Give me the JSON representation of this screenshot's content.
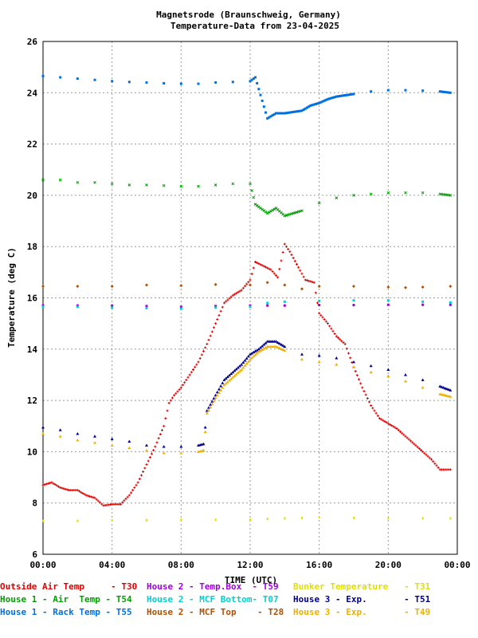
{
  "chart_data": {
    "type": "scatter",
    "title": "Magnetsrode (Braunschweig, Germany)",
    "subtitle": "Temperature-Data from 23-04-2025",
    "xlabel": "TIME (UTC)",
    "ylabel": "Temperature (deg C)",
    "x_ticks": [
      "00:00",
      "04:00",
      "08:00",
      "12:00",
      "16:00",
      "20:00",
      "00:00"
    ],
    "xlim": [
      0,
      24
    ],
    "ylim": [
      6,
      26
    ],
    "y_ticks": [
      "6",
      "8",
      "10",
      "12",
      "14",
      "16",
      "18",
      "20",
      "22",
      "24",
      "26"
    ],
    "grid": true,
    "legend_position": "bottom",
    "series": [
      {
        "name": "Outside Air Temp",
        "sensor": "T30",
        "color": "#e00000",
        "marker": "plus",
        "points": [
          [
            0,
            8.7
          ],
          [
            0.5,
            8.8
          ],
          [
            1,
            8.6
          ],
          [
            1.5,
            8.5
          ],
          [
            2,
            8.5
          ],
          [
            2.5,
            8.3
          ],
          [
            3,
            8.2
          ],
          [
            3.5,
            7.9
          ],
          [
            4,
            7.95
          ],
          [
            4.5,
            7.95
          ],
          [
            5,
            8.3
          ],
          [
            5.5,
            8.8
          ],
          [
            6,
            9.5
          ],
          [
            6.5,
            10.2
          ],
          [
            7,
            11
          ],
          [
            7.3,
            11.9
          ],
          [
            7.6,
            12.2
          ],
          [
            8,
            12.5
          ],
          [
            8.5,
            13
          ],
          [
            9,
            13.5
          ],
          [
            9.5,
            14.2
          ],
          [
            10,
            15
          ],
          [
            10.5,
            15.8
          ],
          [
            11,
            16.1
          ],
          [
            11.5,
            16.3
          ],
          [
            12,
            16.7
          ],
          [
            12.3,
            17.4
          ],
          [
            13.2,
            17.1
          ],
          [
            13.6,
            16.8
          ],
          [
            14,
            18.1
          ],
          [
            14.3,
            17.8
          ],
          [
            15.2,
            16.7
          ],
          [
            15.7,
            16.6
          ],
          [
            16,
            15.4
          ],
          [
            16.5,
            15
          ],
          [
            17,
            14.5
          ],
          [
            17.5,
            14.2
          ],
          [
            18,
            13.3
          ],
          [
            18.5,
            12.5
          ],
          [
            19,
            11.8
          ],
          [
            19.5,
            11.3
          ],
          [
            20,
            11.1
          ],
          [
            20.5,
            10.9
          ],
          [
            21,
            10.6
          ],
          [
            21.5,
            10.3
          ],
          [
            22,
            10
          ],
          [
            22.5,
            9.7
          ],
          [
            23,
            9.3
          ],
          [
            23.6,
            9.3
          ]
        ]
      },
      {
        "name": "House 1 - Air  Temp",
        "sensor": "T54",
        "color": "#00a000",
        "marker": "x",
        "points": [
          [
            0,
            20.6
          ],
          [
            1,
            20.6
          ],
          [
            2,
            20.5
          ],
          [
            3,
            20.5
          ],
          [
            4,
            20.45
          ],
          [
            5,
            20.4
          ],
          [
            6,
            20.4
          ],
          [
            7,
            20.38
          ],
          [
            8,
            20.35
          ],
          [
            9,
            20.35
          ],
          [
            10,
            20.4
          ],
          [
            11,
            20.45
          ],
          [
            12,
            20.45
          ],
          [
            12.3,
            19.65
          ],
          [
            13,
            19.3
          ],
          [
            13.5,
            19.5
          ],
          [
            14,
            19.2
          ],
          [
            14.5,
            19.3
          ],
          [
            15,
            19.4
          ],
          [
            16,
            19.7
          ],
          [
            17,
            19.9
          ],
          [
            18,
            20
          ],
          [
            19,
            20.05
          ],
          [
            20,
            20.1
          ],
          [
            21,
            20.1
          ],
          [
            22,
            20.1
          ],
          [
            23,
            20.05
          ],
          [
            23.6,
            20
          ]
        ]
      },
      {
        "name": "House 1 - Rack Temp",
        "sensor": "T55",
        "color": "#0070e0",
        "marker": "square",
        "points": [
          [
            0,
            24.65
          ],
          [
            1,
            24.6
          ],
          [
            2,
            24.55
          ],
          [
            3,
            24.5
          ],
          [
            4,
            24.45
          ],
          [
            5,
            24.42
          ],
          [
            6,
            24.4
          ],
          [
            7,
            24.37
          ],
          [
            8,
            24.35
          ],
          [
            9,
            24.35
          ],
          [
            10,
            24.4
          ],
          [
            11,
            24.42
          ],
          [
            12,
            24.45
          ],
          [
            12.3,
            24.6
          ],
          [
            13,
            23
          ],
          [
            13.5,
            23.2
          ],
          [
            14,
            23.2
          ],
          [
            14.5,
            23.25
          ],
          [
            15,
            23.3
          ],
          [
            15.5,
            23.5
          ],
          [
            16,
            23.6
          ],
          [
            16.5,
            23.75
          ],
          [
            17,
            23.85
          ],
          [
            17.5,
            23.9
          ],
          [
            18,
            23.95
          ],
          [
            19,
            24.05
          ],
          [
            20,
            24.1
          ],
          [
            21,
            24.1
          ],
          [
            22,
            24.08
          ],
          [
            23,
            24.05
          ],
          [
            23.6,
            24
          ]
        ]
      },
      {
        "name": "House 2 - Temp.Box",
        "sensor": "T59",
        "color": "#a000e0",
        "marker": "square",
        "points": [
          [
            0,
            15.7
          ],
          [
            2,
            15.7
          ],
          [
            4,
            15.7
          ],
          [
            6,
            15.68
          ],
          [
            8,
            15.65
          ],
          [
            10,
            15.68
          ],
          [
            12,
            15.7
          ],
          [
            13,
            15.7
          ],
          [
            14,
            15.7
          ],
          [
            16,
            15.72
          ],
          [
            18,
            15.72
          ],
          [
            20,
            15.73
          ],
          [
            22,
            15.73
          ],
          [
            23.6,
            15.73
          ]
        ]
      },
      {
        "name": "House 2 - MCF Bottom",
        "sensor": "T07",
        "color": "#00d0d0",
        "marker": "square",
        "points": [
          [
            0,
            15.65
          ],
          [
            2,
            15.65
          ],
          [
            4,
            15.62
          ],
          [
            6,
            15.6
          ],
          [
            8,
            15.58
          ],
          [
            10,
            15.62
          ],
          [
            12,
            15.65
          ],
          [
            13,
            15.8
          ],
          [
            14,
            15.85
          ],
          [
            16,
            15.88
          ],
          [
            18,
            15.9
          ],
          [
            20,
            15.9
          ],
          [
            22,
            15.85
          ],
          [
            23.6,
            15.82
          ]
        ]
      },
      {
        "name": "House 2 - MCF Top",
        "sensor": "T28",
        "color": "#b05000",
        "marker": "diamond",
        "points": [
          [
            0,
            16.45
          ],
          [
            2,
            16.45
          ],
          [
            4,
            16.45
          ],
          [
            6,
            16.5
          ],
          [
            8,
            16.48
          ],
          [
            10,
            16.52
          ],
          [
            12,
            16.5
          ],
          [
            13,
            16.6
          ],
          [
            14,
            16.5
          ],
          [
            15,
            16.35
          ],
          [
            16,
            16.45
          ],
          [
            18,
            16.45
          ],
          [
            20,
            16.42
          ],
          [
            21,
            16.4
          ],
          [
            22,
            16.42
          ],
          [
            23.6,
            16.45
          ]
        ]
      },
      {
        "name": "Bunker Temperature",
        "sensor": "T31",
        "color": "#e0e000",
        "marker": "tick",
        "points": [
          [
            0,
            7.3
          ],
          [
            2,
            7.3
          ],
          [
            4,
            7.32
          ],
          [
            6,
            7.33
          ],
          [
            8,
            7.35
          ],
          [
            10,
            7.35
          ],
          [
            12,
            7.35
          ],
          [
            13,
            7.38
          ],
          [
            14,
            7.4
          ],
          [
            15,
            7.42
          ],
          [
            16,
            7.44
          ],
          [
            18,
            7.42
          ],
          [
            20,
            7.4
          ],
          [
            22,
            7.4
          ],
          [
            23.6,
            7.4
          ]
        ]
      },
      {
        "name": "House 3 - Exp.",
        "sensor": "T51",
        "color": "#000090",
        "marker": "triangle",
        "points": [
          [
            0,
            10.95
          ],
          [
            1,
            10.85
          ],
          [
            2,
            10.7
          ],
          [
            3,
            10.6
          ],
          [
            4,
            10.5
          ],
          [
            5,
            10.4
          ],
          [
            6,
            10.25
          ],
          [
            7,
            10.2
          ],
          [
            8,
            10.2
          ],
          [
            9,
            10.25
          ],
          [
            9.3,
            10.3
          ],
          [
            9.5,
            11.6
          ],
          [
            10,
            12.2
          ],
          [
            10.5,
            12.8
          ],
          [
            11,
            13.1
          ],
          [
            11.5,
            13.4
          ],
          [
            12,
            13.8
          ],
          [
            12.5,
            14
          ],
          [
            13,
            14.3
          ],
          [
            13.5,
            14.3
          ],
          [
            14,
            14.1
          ],
          [
            15,
            13.8
          ],
          [
            16,
            13.75
          ],
          [
            17,
            13.65
          ],
          [
            18,
            13.5
          ],
          [
            19,
            13.35
          ],
          [
            20,
            13.2
          ],
          [
            21,
            13
          ],
          [
            22,
            12.8
          ],
          [
            23,
            12.55
          ],
          [
            23.6,
            12.4
          ]
        ]
      },
      {
        "name": "House 3 - Exp.",
        "sensor": "T49",
        "color": "#f0b000",
        "marker": "triangle",
        "points": [
          [
            0,
            10.7
          ],
          [
            1,
            10.6
          ],
          [
            2,
            10.45
          ],
          [
            3,
            10.35
          ],
          [
            4,
            10.25
          ],
          [
            5,
            10.15
          ],
          [
            6,
            10.05
          ],
          [
            7,
            9.95
          ],
          [
            8,
            9.95
          ],
          [
            9,
            10
          ],
          [
            9.3,
            10.05
          ],
          [
            9.5,
            11.5
          ],
          [
            10,
            12.1
          ],
          [
            10.5,
            12.6
          ],
          [
            11,
            12.9
          ],
          [
            11.5,
            13.2
          ],
          [
            12,
            13.6
          ],
          [
            12.5,
            13.9
          ],
          [
            13,
            14.1
          ],
          [
            13.5,
            14.1
          ],
          [
            14,
            13.95
          ],
          [
            15,
            13.6
          ],
          [
            16,
            13.5
          ],
          [
            17,
            13.4
          ],
          [
            18,
            13.3
          ],
          [
            19,
            13.1
          ],
          [
            20,
            12.95
          ],
          [
            21,
            12.75
          ],
          [
            22,
            12.5
          ],
          [
            23,
            12.25
          ],
          [
            23.6,
            12.15
          ]
        ]
      }
    ]
  },
  "legend": {
    "rows": [
      [
        {
          "label": "Outside Air Temp     - T30",
          "color": "#e00000"
        },
        {
          "label": "House 2 - Temp.Box  - T59",
          "color": "#a000e0"
        },
        {
          "label": "Bunker Temperature   - T31",
          "color": "#e0e000"
        }
      ],
      [
        {
          "label": "House 1 - Air  Temp - T54",
          "color": "#00a000"
        },
        {
          "label": "House 2 - MCF Bottom- T07",
          "color": "#00d0d0"
        },
        {
          "label": "House 3 - Exp.       - T51",
          "color": "#000090"
        }
      ],
      [
        {
          "label": "House 1 - Rack Temp - T55",
          "color": "#0070e0"
        },
        {
          "label": "House 2 - MCF Top    - T28",
          "color": "#b05000"
        },
        {
          "label": "House 3 - Exp.       - T49",
          "color": "#f0b000"
        }
      ]
    ]
  }
}
